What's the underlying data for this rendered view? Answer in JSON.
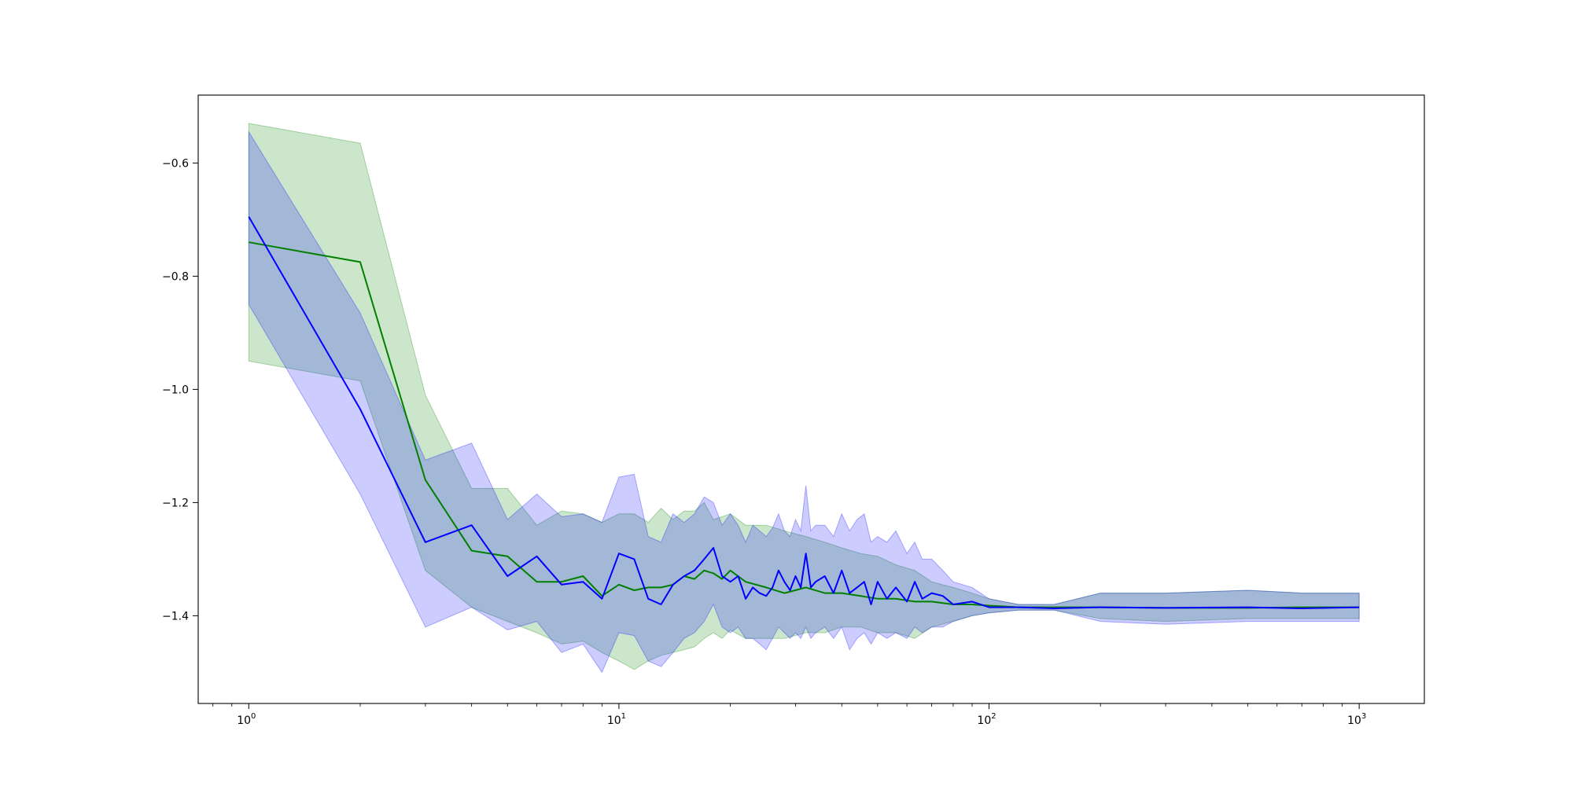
{
  "chart_data": {
    "type": "area",
    "title": "",
    "xlabel": "",
    "ylabel": "",
    "xscale": "log",
    "xlim": [
      0.73,
      1500
    ],
    "ylim": [
      -1.555,
      -0.48
    ],
    "grid": false,
    "legend": "none",
    "x_ticks": [
      {
        "base": "10",
        "exp": "0",
        "value": 1
      },
      {
        "base": "10",
        "exp": "1",
        "value": 10
      },
      {
        "base": "10",
        "exp": "2",
        "value": 100
      },
      {
        "base": "10",
        "exp": "3",
        "value": 1000
      }
    ],
    "y_ticks": [
      {
        "label": "−0.6",
        "value": -0.6
      },
      {
        "label": "−0.8",
        "value": -0.8
      },
      {
        "label": "−1.0",
        "value": -1.0
      },
      {
        "label": "−1.2",
        "value": -1.2
      },
      {
        "label": "−1.4",
        "value": -1.4
      }
    ],
    "series": [
      {
        "color": "#008000",
        "band_color": "#008000",
        "band_opacity": 0.2,
        "x": [
          1,
          2,
          3,
          4,
          5,
          6,
          7,
          8,
          9,
          10,
          11,
          12,
          13,
          14,
          15,
          16,
          17,
          18,
          19,
          20,
          22,
          25,
          28,
          32,
          36,
          40,
          45,
          50,
          56,
          63,
          70,
          80,
          90,
          100,
          120,
          150,
          200,
          300,
          500,
          700,
          1000
        ],
        "mean": [
          -0.74,
          -0.775,
          -1.16,
          -1.285,
          -1.295,
          -1.34,
          -1.34,
          -1.33,
          -1.365,
          -1.345,
          -1.355,
          -1.35,
          -1.35,
          -1.345,
          -1.33,
          -1.335,
          -1.32,
          -1.325,
          -1.335,
          -1.32,
          -1.34,
          -1.35,
          -1.36,
          -1.35,
          -1.36,
          -1.36,
          -1.365,
          -1.37,
          -1.37,
          -1.375,
          -1.375,
          -1.38,
          -1.38,
          -1.382,
          -1.385,
          -1.385,
          -1.385,
          -1.386,
          -1.386,
          -1.385,
          -1.385
        ],
        "upper": [
          -0.53,
          -0.565,
          -1.01,
          -1.175,
          -1.175,
          -1.24,
          -1.215,
          -1.22,
          -1.235,
          -1.22,
          -1.22,
          -1.235,
          -1.21,
          -1.23,
          -1.215,
          -1.215,
          -1.2,
          -1.23,
          -1.225,
          -1.22,
          -1.24,
          -1.24,
          -1.25,
          -1.26,
          -1.27,
          -1.28,
          -1.29,
          -1.295,
          -1.31,
          -1.32,
          -1.34,
          -1.35,
          -1.36,
          -1.37,
          -1.38,
          -1.38,
          -1.36,
          -1.36,
          -1.355,
          -1.36,
          -1.36
        ],
        "lower": [
          -0.95,
          -0.985,
          -1.32,
          -1.385,
          -1.41,
          -1.43,
          -1.45,
          -1.445,
          -1.465,
          -1.48,
          -1.495,
          -1.48,
          -1.47,
          -1.465,
          -1.46,
          -1.455,
          -1.44,
          -1.43,
          -1.44,
          -1.425,
          -1.44,
          -1.44,
          -1.44,
          -1.43,
          -1.43,
          -1.42,
          -1.42,
          -1.43,
          -1.43,
          -1.44,
          -1.42,
          -1.41,
          -1.4,
          -1.395,
          -1.39,
          -1.39,
          -1.405,
          -1.41,
          -1.405,
          -1.405,
          -1.405
        ]
      },
      {
        "color": "#0000ff",
        "band_color": "#0000ff",
        "band_opacity": 0.2,
        "x": [
          1,
          2,
          3,
          4,
          5,
          6,
          7,
          8,
          9,
          10,
          11,
          12,
          13,
          14,
          15,
          16,
          17,
          18,
          19,
          20,
          21,
          22,
          23,
          24,
          25,
          26,
          27,
          28,
          29,
          30,
          31,
          32,
          33,
          34,
          36,
          38,
          40,
          42,
          44,
          46,
          48,
          50,
          53,
          56,
          60,
          63,
          66,
          70,
          75,
          80,
          90,
          100,
          120,
          150,
          200,
          300,
          500,
          700,
          1000
        ],
        "mean": [
          -0.695,
          -1.035,
          -1.27,
          -1.24,
          -1.33,
          -1.295,
          -1.345,
          -1.34,
          -1.37,
          -1.29,
          -1.3,
          -1.37,
          -1.38,
          -1.345,
          -1.33,
          -1.32,
          -1.3,
          -1.28,
          -1.33,
          -1.34,
          -1.33,
          -1.37,
          -1.35,
          -1.36,
          -1.365,
          -1.35,
          -1.32,
          -1.34,
          -1.355,
          -1.33,
          -1.35,
          -1.29,
          -1.35,
          -1.34,
          -1.33,
          -1.36,
          -1.32,
          -1.36,
          -1.35,
          -1.34,
          -1.38,
          -1.34,
          -1.37,
          -1.35,
          -1.375,
          -1.34,
          -1.37,
          -1.36,
          -1.365,
          -1.38,
          -1.375,
          -1.385,
          -1.385,
          -1.387,
          -1.385,
          -1.386,
          -1.385,
          -1.387,
          -1.385
        ],
        "upper": [
          -0.545,
          -0.865,
          -1.125,
          -1.095,
          -1.23,
          -1.185,
          -1.225,
          -1.22,
          -1.235,
          -1.155,
          -1.15,
          -1.26,
          -1.27,
          -1.22,
          -1.235,
          -1.22,
          -1.19,
          -1.2,
          -1.24,
          -1.22,
          -1.24,
          -1.27,
          -1.24,
          -1.25,
          -1.26,
          -1.245,
          -1.22,
          -1.25,
          -1.26,
          -1.23,
          -1.25,
          -1.17,
          -1.25,
          -1.24,
          -1.24,
          -1.26,
          -1.22,
          -1.25,
          -1.23,
          -1.22,
          -1.27,
          -1.26,
          -1.27,
          -1.25,
          -1.29,
          -1.27,
          -1.3,
          -1.3,
          -1.32,
          -1.34,
          -1.35,
          -1.37,
          -1.38,
          -1.38,
          -1.36,
          -1.36,
          -1.355,
          -1.36,
          -1.36
        ],
        "lower": [
          -0.85,
          -1.185,
          -1.42,
          -1.385,
          -1.425,
          -1.41,
          -1.465,
          -1.45,
          -1.5,
          -1.43,
          -1.435,
          -1.48,
          -1.49,
          -1.465,
          -1.44,
          -1.43,
          -1.41,
          -1.38,
          -1.42,
          -1.43,
          -1.42,
          -1.44,
          -1.44,
          -1.45,
          -1.46,
          -1.44,
          -1.42,
          -1.43,
          -1.44,
          -1.43,
          -1.44,
          -1.42,
          -1.44,
          -1.43,
          -1.42,
          -1.44,
          -1.42,
          -1.46,
          -1.44,
          -1.43,
          -1.45,
          -1.43,
          -1.44,
          -1.43,
          -1.44,
          -1.42,
          -1.43,
          -1.42,
          -1.42,
          -1.41,
          -1.4,
          -1.395,
          -1.39,
          -1.39,
          -1.41,
          -1.415,
          -1.41,
          -1.41,
          -1.41
        ]
      }
    ]
  }
}
